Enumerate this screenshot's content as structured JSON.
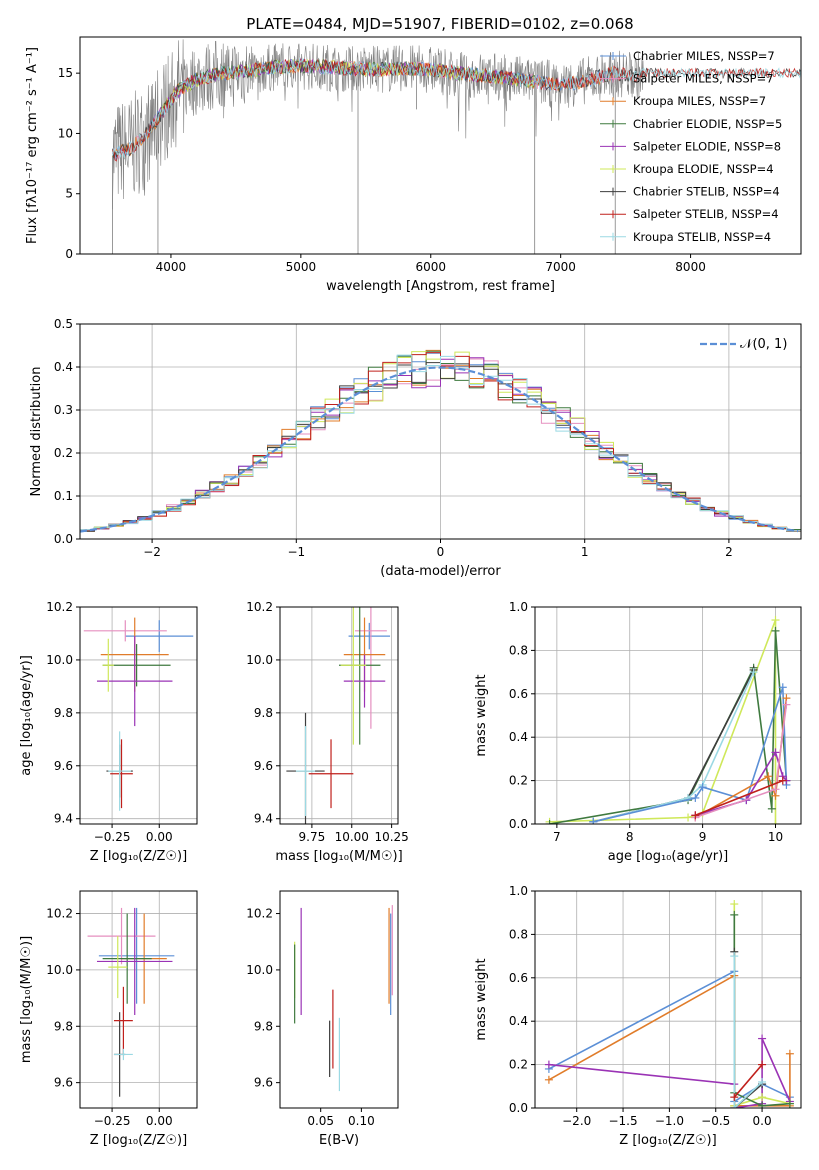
{
  "figure": {
    "title": "PLATE=0484, MJD=51907, FIBERID=0102, z=0.068"
  },
  "colors": {
    "chabrier_miles": "#5b8fd6",
    "salpeter_miles": "#e58fbf",
    "kroupa_miles": "#e07c2a",
    "chabrier_elodie": "#3f7a3f",
    "salpeter_elodie": "#9a33b5",
    "kroupa_elodie": "#cfe85a",
    "chabrier_stelib": "#3d3d3d",
    "salpeter_stelib": "#c0201c",
    "kroupa_stelib": "#9bd9e3",
    "data": "#808080",
    "grid": "#b0b0b0",
    "gauss": "#5b8fd6"
  },
  "chart_data": [
    {
      "id": "spectrum",
      "type": "line",
      "title": "",
      "xlabel": "wavelength [Angstrom, rest frame]",
      "ylabel": "Flux [fλ10⁻¹⁷ erg cm⁻² s⁻¹ A⁻¹]",
      "xlim": [
        3300,
        8850
      ],
      "ylim": [
        0,
        18
      ],
      "xticks": [
        4000,
        5000,
        6000,
        7000,
        8000
      ],
      "yticks": [
        0,
        5,
        10,
        15
      ],
      "grid": false,
      "legend_position": "top-right",
      "series": [
        {
          "name": "Chabrier MILES, NSSP=7",
          "color_key": "chabrier_miles"
        },
        {
          "name": "Salpeter MILES, NSSP=7",
          "color_key": "salpeter_miles"
        },
        {
          "name": "Kroupa MILES, NSSP=7",
          "color_key": "kroupa_miles"
        },
        {
          "name": "Chabrier ELODIE, NSSP=5",
          "color_key": "chabrier_elodie"
        },
        {
          "name": "Salpeter ELODIE, NSSP=8",
          "color_key": "salpeter_elodie"
        },
        {
          "name": "Kroupa ELODIE, NSSP=4",
          "color_key": "kroupa_elodie"
        },
        {
          "name": "Chabrier STELIB, NSSP=4",
          "color_key": "chabrier_stelib"
        },
        {
          "name": "Salpeter STELIB, NSSP=4",
          "color_key": "salpeter_stelib"
        },
        {
          "name": "Kroupa STELIB, NSSP=4",
          "color_key": "kroupa_stelib"
        }
      ],
      "continuum": {
        "x": [
          3550,
          3700,
          3850,
          3950,
          4050,
          4200,
          4400,
          4600,
          4800,
          5000,
          5200,
          5400,
          5600,
          5800,
          6000,
          6200,
          6400,
          6600,
          6800,
          7000,
          7200,
          7400,
          7600
        ],
        "y": [
          8.2,
          8.8,
          10.5,
          12.0,
          13.5,
          14.5,
          15.0,
          15.2,
          15.5,
          15.6,
          15.5,
          15.4,
          15.3,
          15.4,
          15.3,
          15.0,
          14.8,
          14.6,
          14.3,
          14.0,
          14.4,
          15.0,
          14.8
        ]
      },
      "dips": [
        {
          "x": 3550,
          "y": 0
        },
        {
          "x": 3900,
          "y": 0
        },
        {
          "x": 5440,
          "y": 0
        },
        {
          "x": 5890,
          "y": 12.0
        },
        {
          "x": 6800,
          "y": 0
        },
        {
          "x": 7420,
          "y": 0
        }
      ]
    },
    {
      "id": "residuals",
      "type": "histogram",
      "xlabel": "(data-model)/error",
      "ylabel": "Normed distribution",
      "xlim": [
        -2.5,
        2.5
      ],
      "ylim": [
        0,
        0.5
      ],
      "xticks": [
        -2,
        -1,
        0,
        1,
        2
      ],
      "yticks": [
        0.0,
        0.1,
        0.2,
        0.3,
        0.4,
        0.5
      ],
      "grid": true,
      "legend_position": "top-right",
      "legend_label": "𝒩(0, 1)",
      "bin_width": 0.1
    },
    {
      "id": "age_vs_Z",
      "type": "errorbar",
      "xlabel": "Z [log₁₀(Z/Z☉)]",
      "ylabel": "age  [log₁₀(age/yr)]",
      "xlim": [
        -0.42,
        0.2
      ],
      "ylim": [
        9.38,
        10.2
      ],
      "xticks": [
        -0.25,
        0.0
      ],
      "yticks": [
        9.4,
        9.6,
        9.8,
        10.0,
        10.2
      ],
      "grid": true,
      "points": [
        {
          "s": "chabrier_miles",
          "x": 0.0,
          "xe": 0.18,
          "y": 10.09,
          "ye": 0.06
        },
        {
          "s": "salpeter_miles",
          "x": -0.18,
          "xe": 0.22,
          "y": 10.11,
          "ye": 0.04
        },
        {
          "s": "kroupa_miles",
          "x": -0.13,
          "xe": 0.18,
          "y": 10.02,
          "ye": 0.14
        },
        {
          "s": "chabrier_elodie",
          "x": -0.12,
          "xe": 0.18,
          "y": 9.98,
          "ye": 0.08
        },
        {
          "s": "salpeter_elodie",
          "x": -0.13,
          "xe": 0.2,
          "y": 9.92,
          "ye": 0.17
        },
        {
          "s": "kroupa_elodie",
          "x": -0.27,
          "xe": 0.03,
          "y": 9.98,
          "ye": 0.1
        },
        {
          "s": "chabrier_stelib",
          "x": -0.21,
          "xe": 0.07,
          "y": 9.58,
          "ye": 0.1
        },
        {
          "s": "salpeter_stelib",
          "x": -0.2,
          "xe": 0.06,
          "y": 9.57,
          "ye": 0.13
        },
        {
          "s": "kroupa_stelib",
          "x": -0.21,
          "xe": 0.06,
          "y": 9.58,
          "ye": 0.15
        }
      ]
    },
    {
      "id": "age_vs_mass",
      "type": "errorbar",
      "xlabel": "mass [log₁₀(M/M☉)]",
      "ylabel": "",
      "xlim": [
        9.55,
        10.29
      ],
      "ylim": [
        9.38,
        10.2
      ],
      "xticks": [
        9.75,
        10.0,
        10.25
      ],
      "yticks": [
        9.4,
        9.6,
        9.8,
        10.0,
        10.2
      ],
      "grid": true,
      "points": [
        {
          "s": "chabrier_miles",
          "x": 10.11,
          "xe": 0.13,
          "y": 10.09,
          "ye": 0.05
        },
        {
          "s": "salpeter_miles",
          "x": 10.12,
          "xe": 0.1,
          "y": 10.11,
          "ye": 0.37
        },
        {
          "s": "kroupa_miles",
          "x": 10.08,
          "xe": 0.13,
          "y": 10.02,
          "ye": 0.14
        },
        {
          "s": "chabrier_elodie",
          "x": 10.05,
          "xe": 0.13,
          "y": 9.98,
          "ye": 0.3
        },
        {
          "s": "salpeter_elodie",
          "x": 10.08,
          "xe": 0.13,
          "y": 9.92,
          "ye": 0.1
        },
        {
          "s": "kroupa_elodie",
          "x": 10.01,
          "xe": 0.08,
          "y": 9.98,
          "ye": 0.3
        },
        {
          "s": "chabrier_stelib",
          "x": 9.71,
          "xe": 0.12,
          "y": 9.58,
          "ye": 0.22
        },
        {
          "s": "salpeter_stelib",
          "x": 9.87,
          "xe": 0.14,
          "y": 9.57,
          "ye": 0.13
        },
        {
          "s": "kroupa_stelib",
          "x": 9.71,
          "xe": 0.06,
          "y": 9.58,
          "ye": 0.17
        }
      ]
    },
    {
      "id": "weight_vs_age",
      "type": "line",
      "xlabel": "age  [log₁₀(age/yr)]",
      "ylabel": "mass weight",
      "xlim": [
        6.7,
        10.35
      ],
      "ylim": [
        0,
        1
      ],
      "xticks": [
        7,
        8,
        9,
        10
      ],
      "yticks": [
        0.0,
        0.2,
        0.4,
        0.6,
        0.8,
        1.0
      ],
      "grid": true,
      "series": [
        {
          "s": "kroupa_elodie",
          "x": [
            6.9,
            8.8,
            9.0,
            10.0,
            10.0
          ],
          "y": [
            0.01,
            0.03,
            0.05,
            0.94,
            0.0
          ]
        },
        {
          "s": "chabrier_elodie",
          "x": [
            6.9,
            8.8,
            9.7,
            9.95,
            10.0,
            10.15
          ],
          "y": [
            0.0,
            0.11,
            0.72,
            0.07,
            0.89,
            0.2
          ]
        },
        {
          "s": "chabrier_stelib",
          "x": [
            7.5,
            8.8,
            9.7
          ],
          "y": [
            0.01,
            0.12,
            0.71
          ]
        },
        {
          "s": "kroupa_stelib",
          "x": [
            7.5,
            8.8,
            9.0,
            9.7
          ],
          "y": [
            0.01,
            0.12,
            0.18,
            0.7
          ]
        },
        {
          "s": "chabrier_miles",
          "x": [
            7.5,
            8.9,
            9.0,
            9.6,
            10.1,
            10.15
          ],
          "y": [
            0.01,
            0.12,
            0.17,
            0.11,
            0.63,
            0.18
          ]
        },
        {
          "s": "kroupa_miles",
          "x": [
            8.9,
            9.9,
            10.0,
            10.15
          ],
          "y": [
            0.03,
            0.22,
            0.13,
            0.58
          ]
        },
        {
          "s": "salpeter_elodie",
          "x": [
            8.9,
            9.6,
            10.0,
            10.1,
            10.15
          ],
          "y": [
            0.04,
            0.11,
            0.33,
            0.22,
            0.2
          ]
        },
        {
          "s": "salpeter_miles",
          "x": [
            8.9,
            10.0,
            10.15
          ],
          "y": [
            0.03,
            0.16,
            0.55
          ]
        },
        {
          "s": "salpeter_stelib",
          "x": [
            8.9,
            10.1
          ],
          "y": [
            0.04,
            0.2
          ]
        }
      ]
    },
    {
      "id": "mass_vs_Z",
      "type": "errorbar",
      "xlabel": "Z [log₁₀(Z/Z☉)]",
      "ylabel": "mass [log₁₀(M/M☉)]",
      "xlim": [
        -0.42,
        0.2
      ],
      "ylim": [
        9.51,
        10.28
      ],
      "xticks": [
        -0.25,
        0.0
      ],
      "yticks": [
        9.6,
        9.8,
        10.0,
        10.2
      ],
      "grid": true,
      "points": [
        {
          "s": "chabrier_miles",
          "x": -0.12,
          "xe": 0.2,
          "y": 10.05,
          "ye": 0.17
        },
        {
          "s": "salpeter_miles",
          "x": -0.2,
          "xe": 0.18,
          "y": 10.12,
          "ye": 0.1
        },
        {
          "s": "kroupa_miles",
          "x": -0.08,
          "xe": 0.12,
          "y": 10.04,
          "ye": 0.16
        },
        {
          "s": "chabrier_elodie",
          "x": -0.17,
          "xe": 0.13,
          "y": 10.04,
          "ye": 0.16
        },
        {
          "s": "salpeter_elodie",
          "x": -0.13,
          "xe": 0.2,
          "y": 10.03,
          "ye": 0.19
        },
        {
          "s": "kroupa_elodie",
          "x": -0.22,
          "xe": 0.05,
          "y": 10.01,
          "ye": 0.11
        },
        {
          "s": "chabrier_stelib",
          "x": -0.21,
          "xe": 0.03,
          "y": 9.7,
          "ye": 0.15
        },
        {
          "s": "salpeter_stelib",
          "x": -0.19,
          "xe": 0.05,
          "y": 9.82,
          "ye": 0.12
        },
        {
          "s": "kroupa_stelib",
          "x": -0.19,
          "xe": 0.05,
          "y": 9.7,
          "ye": 0.02
        }
      ]
    },
    {
      "id": "mass_vs_ebv",
      "type": "errorbar",
      "xlabel": "E(B-V)",
      "ylabel": "",
      "xlim": [
        0.0,
        0.145
      ],
      "ylim": [
        9.51,
        10.28
      ],
      "xticks": [
        0.05,
        0.1
      ],
      "yticks": [
        9.6,
        9.8,
        10.0,
        10.2
      ],
      "grid": false,
      "points": [
        {
          "s": "kroupa_elodie",
          "x": 0.018,
          "xe": 0,
          "y": 10.0,
          "ye": 0.1
        },
        {
          "s": "chabrier_elodie",
          "x": 0.018,
          "xe": 0,
          "y": 9.95,
          "ye": 0.14
        },
        {
          "s": "salpeter_elodie",
          "x": 0.026,
          "xe": 0,
          "y": 10.03,
          "ye": 0.19
        },
        {
          "s": "chabrier_stelib",
          "x": 0.061,
          "xe": 0,
          "y": 9.72,
          "ye": 0.1
        },
        {
          "s": "salpeter_stelib",
          "x": 0.065,
          "xe": 0,
          "y": 9.79,
          "ye": 0.14
        },
        {
          "s": "kroupa_stelib",
          "x": 0.073,
          "xe": 0,
          "y": 9.7,
          "ye": 0.13
        },
        {
          "s": "chabrier_miles",
          "x": 0.136,
          "xe": 0,
          "y": 10.02,
          "ye": 0.18
        },
        {
          "s": "salpeter_miles",
          "x": 0.138,
          "xe": 0,
          "y": 10.07,
          "ye": 0.16
        },
        {
          "s": "kroupa_miles",
          "x": 0.134,
          "xe": 0,
          "y": 10.05,
          "ye": 0.17
        }
      ]
    },
    {
      "id": "weight_vs_Z",
      "type": "line",
      "xlabel": "Z [log₁₀(Z/Z☉)]",
      "ylabel": "mass weight",
      "xlim": [
        -2.45,
        0.42
      ],
      "ylim": [
        0,
        1
      ],
      "xticks": [
        -2.0,
        -1.5,
        -1.0,
        -0.5,
        0.0
      ],
      "yticks": [
        0.0,
        0.2,
        0.4,
        0.6,
        0.8,
        1.0
      ],
      "grid": true,
      "series": [
        {
          "s": "chabrier_miles",
          "x": [
            -2.3,
            -0.3,
            -0.3,
            0.0,
            0.3
          ],
          "y": [
            0.18,
            0.63,
            0.03,
            0.11,
            0.05
          ]
        },
        {
          "s": "kroupa_miles",
          "x": [
            -2.3,
            -0.3,
            -0.3,
            0.3,
            0.3
          ],
          "y": [
            0.13,
            0.61,
            0.01,
            0.01,
            0.25
          ]
        },
        {
          "s": "salpeter_elodie",
          "x": [
            -2.3,
            -0.3,
            -0.3,
            0.0,
            0.0,
            0.3
          ],
          "y": [
            0.2,
            0.11,
            0.0,
            0.02,
            0.32,
            0.03
          ]
        },
        {
          "s": "kroupa_elodie",
          "x": [
            -0.3,
            -0.3,
            0.0,
            0.3
          ],
          "y": [
            0.94,
            0.01,
            0.05,
            0.02
          ]
        },
        {
          "s": "chabrier_elodie",
          "x": [
            -0.3,
            -0.3,
            0.0,
            0.3
          ],
          "y": [
            0.89,
            0.07,
            0.01,
            0.02
          ]
        },
        {
          "s": "chabrier_stelib",
          "x": [
            -0.3,
            -0.3,
            0.0
          ],
          "y": [
            0.72,
            0.0,
            0.11
          ]
        },
        {
          "s": "kroupa_stelib",
          "x": [
            -0.3,
            -0.3,
            0.0
          ],
          "y": [
            0.7,
            0.0,
            0.12
          ]
        },
        {
          "s": "salpeter_stelib",
          "x": [
            -0.3,
            0.0
          ],
          "y": [
            0.05,
            0.2
          ]
        }
      ]
    }
  ]
}
